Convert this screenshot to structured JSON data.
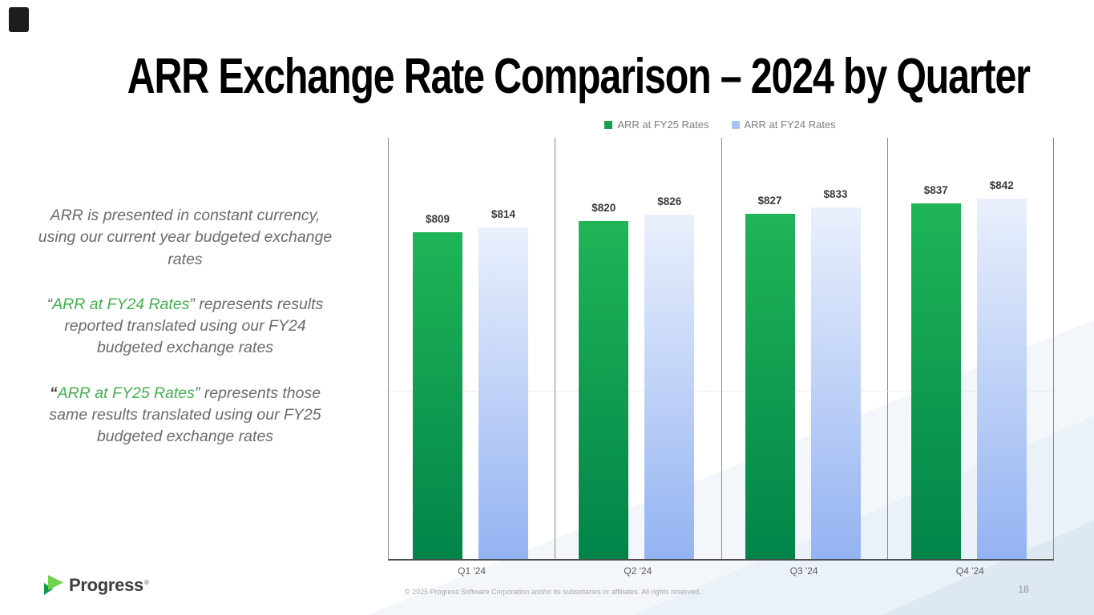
{
  "slide": {
    "title": "ARR Exchange Rate Comparison – 2024 by Quarter",
    "page_number": "18",
    "footer": "© 2025 Progress Software Corporation and/or its subsidiaries or affiliates. All rights reserved."
  },
  "logo": {
    "text": "Progress",
    "reg_mark": "®"
  },
  "notes": {
    "paragraphs": [
      {
        "segments": [
          {
            "text": "ARR is presented in constant currency, using our current year budgeted exchange rates",
            "style": "normal"
          }
        ]
      },
      {
        "segments": [
          {
            "text": "“",
            "style": "normal"
          },
          {
            "text": "ARR at FY24 Rates",
            "style": "highlight"
          },
          {
            "text": "” represents results reported translated using our FY24 budgeted exchange rates",
            "style": "normal"
          }
        ]
      },
      {
        "segments": [
          {
            "text": "“",
            "style": "quote-bold"
          },
          {
            "text": "ARR at FY25 Rates",
            "style": "highlight"
          },
          {
            "text": "” represents those same results translated using our FY25 budgeted exchange rates",
            "style": "normal"
          }
        ]
      }
    ]
  },
  "chart_data": {
    "type": "bar",
    "title": "ARR Exchange Rate Comparison – 2024 by Quarter",
    "categories": [
      "Q1 '24",
      "Q2 '24",
      "Q3 '24",
      "Q4 '24"
    ],
    "series": [
      {
        "name": "ARR at FY25 Rates",
        "values": [
          809,
          820,
          827,
          837
        ],
        "color_top": "#1fb557",
        "color_bottom": "#028449",
        "legend_color": "#13a24e"
      },
      {
        "name": "ARR at FY24 Rates",
        "values": [
          814,
          826,
          833,
          842
        ],
        "color_top": "#eaf0fc",
        "color_bottom": "#94b3f2",
        "legend_color": "#a6c3f5"
      }
    ],
    "value_prefix": "$",
    "ylim": [
      496,
      900
    ],
    "xlabel": "",
    "ylabel": "",
    "legend_position": "top",
    "gridlines": false
  },
  "colors": {
    "title": "#000000",
    "notes_text": "#6b6b6b",
    "highlight_green": "#42b04d",
    "legend_text": "#7f7f7f",
    "bar_label": "#3b3b3b",
    "axis_line": "#4d4d4d",
    "logo_green_bright": "#6fd34f",
    "logo_green_dark": "#0f9a4c",
    "deco_band": "#dee8f3"
  }
}
